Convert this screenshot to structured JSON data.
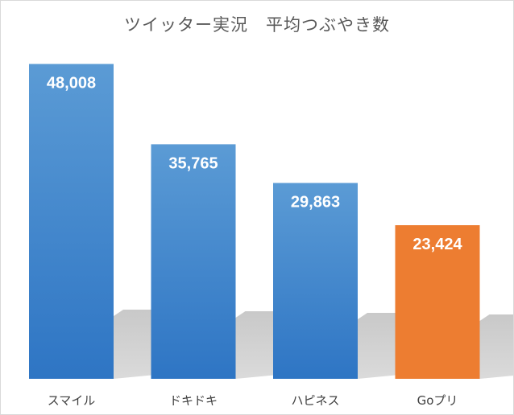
{
  "chart_data": {
    "type": "bar",
    "title": "ツイッター実況　平均つぶやき数",
    "categories": [
      "スマイル",
      "ドキドキ",
      "ハピネス",
      "Goプリ"
    ],
    "values": [
      48008,
      35765,
      29863,
      23424
    ],
    "value_labels": [
      "48,008",
      "35,765",
      "29,863",
      "23,424"
    ],
    "ylim": [
      0,
      52000
    ],
    "grid": false,
    "legend": "none",
    "colors": [
      "#3a80cb",
      "#3a80cb",
      "#3a80cb",
      "#ed7d31"
    ],
    "gradient_top_color": "#5b9bd5"
  }
}
